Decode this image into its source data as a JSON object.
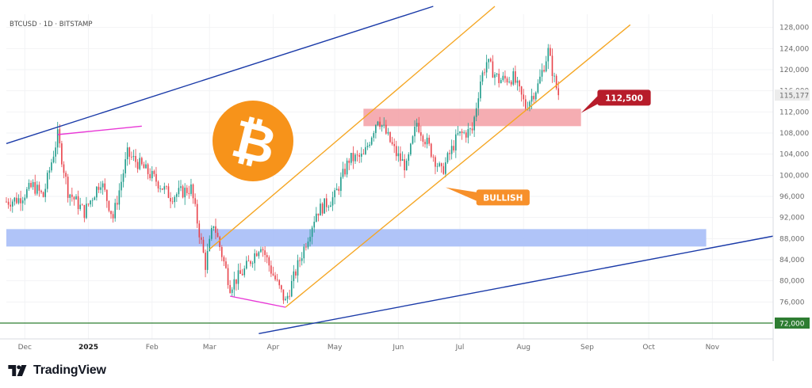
{
  "symbol_line": "BTCUSD · 1D · BITSTAMP",
  "brand": {
    "name": "TradingView",
    "logo_icon": "tradingview-logo-icon"
  },
  "chart_data": {
    "type": "candlestick",
    "symbol": "BTCUSD",
    "interval": "1D",
    "exchange": "BITSTAMP",
    "last_price": "115,177",
    "last_price_value": 115177,
    "ylim": [
      69000,
      130500
    ],
    "y_ticks": [
      "128,000",
      "124,000",
      "120,000",
      "116,000",
      "112,000",
      "108,000",
      "104,000",
      "100,000",
      "96,000",
      "92,000",
      "88,000",
      "84,000",
      "80,000",
      "76,000"
    ],
    "y_tick_values": [
      128000,
      124000,
      120000,
      116000,
      112000,
      108000,
      104000,
      100000,
      96000,
      92000,
      88000,
      84000,
      80000,
      76000
    ],
    "x_labels": [
      {
        "label": "Dec",
        "date": "2024-12-01",
        "bold": false
      },
      {
        "label": "2025",
        "date": "2025-01-01",
        "bold": true
      },
      {
        "label": "Feb",
        "date": "2025-02-01",
        "bold": false
      },
      {
        "label": "Mar",
        "date": "2025-03-01",
        "bold": false
      },
      {
        "label": "Apr",
        "date": "2025-04-01",
        "bold": false
      },
      {
        "label": "May",
        "date": "2025-05-01",
        "bold": false
      },
      {
        "label": "Jun",
        "date": "2025-06-01",
        "bold": false
      },
      {
        "label": "Jul",
        "date": "2025-07-01",
        "bold": false
      },
      {
        "label": "Aug",
        "date": "2025-08-01",
        "bold": false
      },
      {
        "label": "Sep",
        "date": "2025-09-01",
        "bold": false
      },
      {
        "label": "Oct",
        "date": "2025-10-01",
        "bold": false
      },
      {
        "label": "Nov",
        "date": "2025-11-01",
        "bold": false
      }
    ],
    "x_range": [
      "2024-11-22",
      "2025-12-01"
    ],
    "price_path": [
      [
        "2024-11-22",
        95000
      ],
      [
        "2024-11-28",
        95500
      ],
      [
        "2024-12-05",
        98000
      ],
      [
        "2024-12-10",
        96000
      ],
      [
        "2024-12-17",
        107500
      ],
      [
        "2024-12-22",
        97000
      ],
      [
        "2024-12-30",
        93000
      ],
      [
        "2025-01-07",
        99000
      ],
      [
        "2025-01-13",
        92000
      ],
      [
        "2025-01-20",
        104000
      ],
      [
        "2025-01-26",
        102000
      ],
      [
        "2025-02-03",
        99000
      ],
      [
        "2025-02-10",
        96000
      ],
      [
        "2025-02-20",
        97500
      ],
      [
        "2025-02-27",
        83000
      ],
      [
        "2025-03-03",
        91000
      ],
      [
        "2025-03-11",
        79000
      ],
      [
        "2025-03-18",
        82000
      ],
      [
        "2025-03-26",
        87000
      ],
      [
        "2025-03-31",
        82000
      ],
      [
        "2025-04-07",
        76000
      ],
      [
        "2025-04-14",
        84000
      ],
      [
        "2025-04-22",
        93000
      ],
      [
        "2025-05-01",
        96000
      ],
      [
        "2025-05-08",
        103000
      ],
      [
        "2025-05-15",
        103500
      ],
      [
        "2025-05-22",
        111000
      ],
      [
        "2025-05-31",
        104000
      ],
      [
        "2025-06-05",
        101500
      ],
      [
        "2025-06-10",
        110000
      ],
      [
        "2025-06-17",
        104500
      ],
      [
        "2025-06-22",
        100500
      ],
      [
        "2025-06-30",
        107500
      ],
      [
        "2025-07-07",
        108500
      ],
      [
        "2025-07-11",
        118000
      ],
      [
        "2025-07-14",
        121500
      ],
      [
        "2025-07-20",
        118000
      ],
      [
        "2025-07-27",
        118500
      ],
      [
        "2025-08-02",
        113000
      ],
      [
        "2025-08-08",
        117000
      ],
      [
        "2025-08-13",
        123500
      ],
      [
        "2025-08-16",
        118000
      ],
      [
        "2025-08-18",
        115177
      ]
    ],
    "zones": [
      {
        "name": "resistance-zone",
        "color": "#f4a6ab",
        "from": "2025-05-15",
        "to": "2025-08-29",
        "low": 109300,
        "high": 112600
      },
      {
        "name": "support-zone",
        "color": "#a9bff7",
        "from": "2024-11-22",
        "to": "2025-10-29",
        "low": 86500,
        "high": 89800
      }
    ],
    "horizontal_line": {
      "value": 72000,
      "label": "72,000",
      "color": "#2e7d32"
    },
    "channels": [
      {
        "name": "outer-channel-upper",
        "color": "#1a3aa8",
        "points": [
          [
            "2024-11-22",
            106000
          ],
          [
            "2025-06-18",
            132000
          ]
        ]
      },
      {
        "name": "outer-channel-lower",
        "color": "#1a3aa8",
        "points": [
          [
            "2025-03-25",
            70000
          ],
          [
            "2025-12-01",
            88500
          ]
        ]
      },
      {
        "name": "orange-channel-upper",
        "color": "#f5a623",
        "points": [
          [
            "2025-03-01",
            86000
          ],
          [
            "2025-07-18",
            132000
          ]
        ]
      },
      {
        "name": "orange-channel-lower",
        "color": "#f5a623",
        "points": [
          [
            "2025-04-07",
            75000
          ],
          [
            "2025-09-22",
            128500
          ]
        ]
      }
    ],
    "divergence_lines": [
      {
        "name": "top-divergence-line",
        "color": "#e838d6",
        "points": [
          [
            "2024-12-17",
            107700
          ],
          [
            "2025-01-27",
            109300
          ]
        ]
      },
      {
        "name": "bottom-divergence-line",
        "color": "#e838d6",
        "points": [
          [
            "2025-03-11",
            77100
          ],
          [
            "2025-04-07",
            75000
          ]
        ]
      }
    ],
    "callouts": [
      {
        "name": "level-callout",
        "text": "112,500",
        "fill": "#b71c2a",
        "text_color": "#ffffff",
        "at": [
          "2025-09-06",
          114700
        ],
        "pointer": [
          "2025-08-29",
          111800
        ]
      },
      {
        "name": "bullish-callout",
        "text": "BULLISH",
        "fill": "#f7902a",
        "text_color": "#ffffff",
        "at": [
          "2025-07-09",
          95800
        ],
        "pointer": [
          "2025-06-24",
          97700
        ]
      }
    ],
    "bitcoin_logo": {
      "icon": "bitcoin-logo-icon",
      "color": "#f7931a"
    }
  }
}
